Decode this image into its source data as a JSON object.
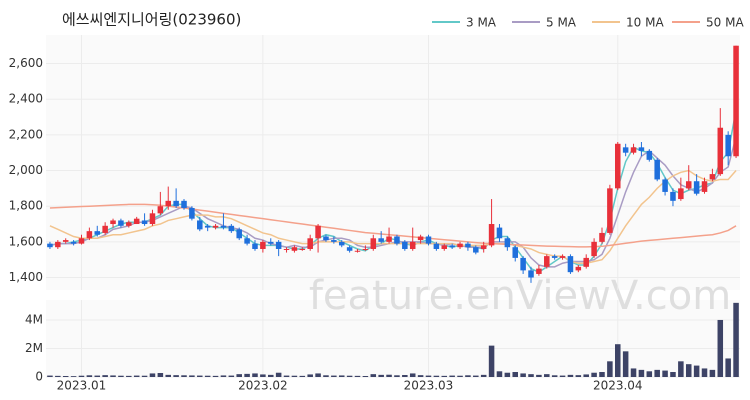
{
  "chart_data": {
    "type": "candlestick",
    "title": "에쓰씨엔지니어링(023960)",
    "watermark": "feature.enViewV.com",
    "categories": [
      null,
      null,
      null,
      null,
      "2023.01",
      null,
      null,
      null,
      null,
      null,
      null,
      null,
      null,
      null,
      null,
      null,
      null,
      null,
      null,
      null,
      null,
      null,
      null,
      null,
      null,
      null,
      null,
      "2023.02",
      null,
      null,
      null,
      null,
      null,
      null,
      null,
      null,
      null,
      null,
      null,
      null,
      null,
      null,
      null,
      null,
      null,
      null,
      null,
      null,
      "2023.03",
      null,
      null,
      null,
      null,
      null,
      null,
      null,
      null,
      null,
      null,
      null,
      null,
      null,
      null,
      null,
      null,
      null,
      null,
      null,
      null,
      null,
      null,
      null,
      "2023.04",
      null,
      null,
      null,
      null,
      null,
      null,
      null,
      null,
      null,
      null,
      null,
      null,
      null,
      null,
      null
    ],
    "open": [
      1590,
      1570,
      1600,
      1600,
      1590,
      1620,
      1660,
      1650,
      1700,
      1720,
      1690,
      1700,
      1720,
      1700,
      1760,
      1800,
      1830,
      1830,
      1790,
      1720,
      1690,
      1680,
      1690,
      1690,
      1670,
      1620,
      1590,
      1560,
      1600,
      1600,
      1560,
      1550,
      1560,
      1560,
      1620,
      1630,
      1610,
      1600,
      1570,
      1550,
      1560,
      1560,
      1620,
      1600,
      1630,
      1600,
      1560,
      1610,
      1630,
      1590,
      1560,
      1580,
      1570,
      1590,
      1570,
      1560,
      1580,
      1680,
      1620,
      1570,
      1510,
      1440,
      1420,
      1460,
      1520,
      1510,
      1520,
      1440,
      1460,
      1520,
      1600,
      1650,
      1900,
      2130,
      2100,
      2130,
      2110,
      2060,
      1950,
      1880,
      1840,
      1900,
      1940,
      1880,
      1950,
      1980,
      2200,
      2080
    ],
    "high": [
      1600,
      1610,
      1620,
      1610,
      1640,
      1680,
      1690,
      1710,
      1730,
      1730,
      1720,
      1740,
      1760,
      1780,
      1880,
      1910,
      1900,
      1840,
      1800,
      1740,
      1700,
      1700,
      1760,
      1700,
      1680,
      1640,
      1610,
      1610,
      1620,
      1610,
      1570,
      1580,
      1570,
      1640,
      1700,
      1640,
      1630,
      1610,
      1580,
      1560,
      1580,
      1640,
      1660,
      1680,
      1640,
      1610,
      1680,
      1640,
      1640,
      1600,
      1590,
      1590,
      1600,
      1600,
      1580,
      1600,
      1840,
      1700,
      1630,
      1580,
      1520,
      1460,
      1470,
      1530,
      1530,
      1530,
      1530,
      1470,
      1530,
      1620,
      1680,
      1920,
      2160,
      2150,
      2150,
      2160,
      2120,
      2070,
      1960,
      1900,
      1960,
      2030,
      1980,
      1960,
      2010,
      2350,
      2220,
      2700
    ],
    "low": [
      1560,
      1560,
      1590,
      1580,
      1585,
      1610,
      1630,
      1640,
      1680,
      1680,
      1680,
      1700,
      1690,
      1690,
      1750,
      1780,
      1790,
      1780,
      1720,
      1660,
      1660,
      1670,
      1670,
      1650,
      1610,
      1580,
      1550,
      1540,
      1580,
      1520,
      1540,
      1540,
      1550,
      1550,
      1540,
      1600,
      1590,
      1570,
      1540,
      1540,
      1550,
      1550,
      1590,
      1590,
      1580,
      1550,
      1550,
      1590,
      1580,
      1550,
      1550,
      1560,
      1560,
      1550,
      1530,
      1540,
      1570,
      1600,
      1550,
      1490,
      1420,
      1370,
      1410,
      1450,
      1500,
      1500,
      1420,
      1430,
      1450,
      1510,
      1590,
      1640,
      1890,
      2080,
      2090,
      2080,
      2050,
      1940,
      1860,
      1800,
      1830,
      1890,
      1860,
      1870,
      1940,
      1970,
      2030,
      2070
    ],
    "close": [
      1570,
      1600,
      1610,
      1590,
      1620,
      1660,
      1640,
      1690,
      1720,
      1690,
      1710,
      1730,
      1700,
      1760,
      1800,
      1830,
      1800,
      1790,
      1730,
      1670,
      1680,
      1690,
      1680,
      1660,
      1620,
      1590,
      1560,
      1600,
      1590,
      1560,
      1560,
      1570,
      1560,
      1620,
      1690,
      1610,
      1600,
      1580,
      1550,
      1550,
      1560,
      1620,
      1600,
      1630,
      1590,
      1560,
      1600,
      1630,
      1590,
      1560,
      1580,
      1570,
      1590,
      1570,
      1540,
      1580,
      1700,
      1620,
      1570,
      1510,
      1440,
      1400,
      1450,
      1520,
      1510,
      1520,
      1430,
      1460,
      1510,
      1600,
      1650,
      1900,
      2150,
      2100,
      2130,
      2110,
      2060,
      1950,
      1880,
      1830,
      1900,
      1940,
      1870,
      1940,
      1980,
      2240,
      2080,
      2700
    ],
    "volume": [
      100000,
      80000,
      70000,
      60000,
      90000,
      120000,
      100000,
      130000,
      110000,
      90000,
      80000,
      100000,
      90000,
      250000,
      280000,
      150000,
      130000,
      120000,
      110000,
      100000,
      90000,
      80000,
      110000,
      100000,
      200000,
      220000,
      250000,
      180000,
      150000,
      300000,
      100000,
      90000,
      80000,
      180000,
      250000,
      120000,
      100000,
      110000,
      90000,
      80000,
      70000,
      200000,
      150000,
      160000,
      120000,
      140000,
      250000,
      130000,
      100000,
      90000,
      80000,
      100000,
      90000,
      120000,
      100000,
      150000,
      2200000,
      400000,
      300000,
      350000,
      250000,
      200000,
      150000,
      200000,
      120000,
      100000,
      150000,
      130000,
      180000,
      300000,
      350000,
      1100000,
      2300000,
      1800000,
      600000,
      500000,
      400000,
      500000,
      450000,
      350000,
      1100000,
      900000,
      800000,
      600000,
      500000,
      4000000,
      1300000,
      5200000
    ],
    "up_color": "#e8303a",
    "down_color": "#1f6fdc",
    "volume_color": "#3d4366",
    "series": [
      {
        "name": "3 MA",
        "color": "#62c8c8",
        "values": [
          1580,
          1590,
          1590,
          1600,
          1610,
          1620,
          1640,
          1660,
          1680,
          1700,
          1710,
          1710,
          1710,
          1730,
          1750,
          1800,
          1810,
          1810,
          1770,
          1730,
          1690,
          1680,
          1680,
          1680,
          1650,
          1620,
          1590,
          1580,
          1580,
          1580,
          1570,
          1560,
          1560,
          1580,
          1620,
          1640,
          1630,
          1600,
          1580,
          1560,
          1550,
          1580,
          1590,
          1620,
          1610,
          1590,
          1580,
          1600,
          1610,
          1590,
          1580,
          1570,
          1580,
          1580,
          1570,
          1560,
          1610,
          1630,
          1630,
          1570,
          1510,
          1450,
          1430,
          1460,
          1490,
          1520,
          1490,
          1470,
          1470,
          1520,
          1590,
          1720,
          1900,
          2050,
          2130,
          2110,
          2100,
          2040,
          1960,
          1890,
          1870,
          1890,
          1900,
          1920,
          1930,
          2050,
          2100,
          2340
        ]
      },
      {
        "name": "5 MA",
        "color": "#a99cc4",
        "values": [
          1580,
          1590,
          1590,
          1590,
          1600,
          1620,
          1620,
          1640,
          1670,
          1680,
          1690,
          1710,
          1710,
          1720,
          1740,
          1760,
          1780,
          1800,
          1790,
          1760,
          1730,
          1710,
          1690,
          1680,
          1670,
          1650,
          1620,
          1610,
          1590,
          1580,
          1570,
          1580,
          1570,
          1570,
          1600,
          1610,
          1620,
          1620,
          1610,
          1580,
          1570,
          1570,
          1580,
          1590,
          1600,
          1600,
          1600,
          1600,
          1590,
          1590,
          1580,
          1590,
          1580,
          1570,
          1570,
          1570,
          1600,
          1600,
          1600,
          1600,
          1570,
          1510,
          1470,
          1460,
          1460,
          1480,
          1490,
          1490,
          1490,
          1500,
          1530,
          1620,
          1750,
          1880,
          1990,
          2080,
          2110,
          2070,
          2030,
          1970,
          1920,
          1900,
          1880,
          1900,
          1930,
          1990,
          2020,
          2190
        ]
      },
      {
        "name": "10 MA",
        "color": "#f2c48e",
        "values": [
          1690,
          1670,
          1650,
          1630,
          1620,
          1620,
          1620,
          1630,
          1640,
          1640,
          1650,
          1660,
          1670,
          1690,
          1700,
          1720,
          1730,
          1740,
          1750,
          1750,
          1750,
          1740,
          1740,
          1730,
          1710,
          1690,
          1670,
          1650,
          1640,
          1620,
          1610,
          1600,
          1590,
          1590,
          1600,
          1600,
          1600,
          1600,
          1600,
          1590,
          1590,
          1590,
          1590,
          1590,
          1590,
          1590,
          1590,
          1590,
          1590,
          1590,
          1590,
          1590,
          1580,
          1580,
          1580,
          1580,
          1590,
          1590,
          1590,
          1580,
          1570,
          1560,
          1540,
          1530,
          1520,
          1520,
          1490,
          1480,
          1480,
          1490,
          1500,
          1550,
          1620,
          1690,
          1750,
          1810,
          1850,
          1900,
          1940,
          1970,
          1990,
          2000,
          1970,
          1950,
          1940,
          1950,
          1950,
          2000
        ]
      },
      {
        "name": "50 MA",
        "color": "#f4a18b",
        "values": [
          1790,
          1792,
          1794,
          1796,
          1798,
          1800,
          1802,
          1804,
          1806,
          1808,
          1810,
          1810,
          1810,
          1808,
          1805,
          1800,
          1795,
          1790,
          1784,
          1778,
          1772,
          1766,
          1760,
          1754,
          1748,
          1742,
          1736,
          1730,
          1724,
          1718,
          1712,
          1706,
          1700,
          1694,
          1688,
          1682,
          1676,
          1670,
          1664,
          1658,
          1652,
          1648,
          1644,
          1640,
          1636,
          1632,
          1628,
          1624,
          1620,
          1616,
          1612,
          1608,
          1604,
          1600,
          1596,
          1592,
          1590,
          1588,
          1586,
          1584,
          1582,
          1580,
          1578,
          1576,
          1575,
          1574,
          1573,
          1572,
          1572,
          1573,
          1575,
          1580,
          1586,
          1592,
          1598,
          1604,
          1608,
          1612,
          1616,
          1620,
          1624,
          1628,
          1632,
          1636,
          1640,
          1650,
          1664,
          1690
        ]
      }
    ],
    "ylim": [
      1330,
      2760
    ],
    "yticks": [
      {
        "value": 1400,
        "label": "1,400"
      },
      {
        "value": 1600,
        "label": "1,600"
      },
      {
        "value": 1800,
        "label": "1,800"
      },
      {
        "value": 2000,
        "label": "2,000"
      },
      {
        "value": 2200,
        "label": "2,200"
      },
      {
        "value": 2400,
        "label": "2,400"
      },
      {
        "value": 2600,
        "label": "2,600"
      }
    ],
    "volume_ylim": [
      0,
      5400000
    ],
    "volume_yticks": [
      0,
      {
        "value": 2000000,
        "label": "2M"
      },
      {
        "value": 4000000,
        "label": "4M"
      }
    ],
    "grid": true,
    "legend": "top-right"
  }
}
